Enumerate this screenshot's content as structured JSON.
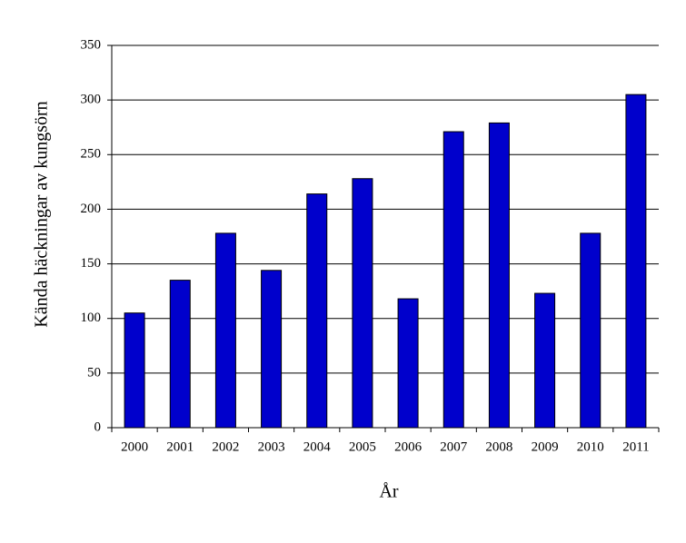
{
  "chart_data": {
    "type": "bar",
    "xlabel": "År",
    "ylabel": "Kända häckningar av kungsörn",
    "categories": [
      "2000",
      "2001",
      "2002",
      "2003",
      "2004",
      "2005",
      "2006",
      "2007",
      "2008",
      "2009",
      "2010",
      "2011"
    ],
    "values": [
      105,
      135,
      178,
      144,
      214,
      228,
      118,
      271,
      279,
      123,
      178,
      305
    ],
    "color": "#0000cc",
    "ylim": [
      0,
      350
    ],
    "yticks": [
      0,
      50,
      100,
      150,
      200,
      250,
      300,
      350
    ],
    "grid": true
  }
}
